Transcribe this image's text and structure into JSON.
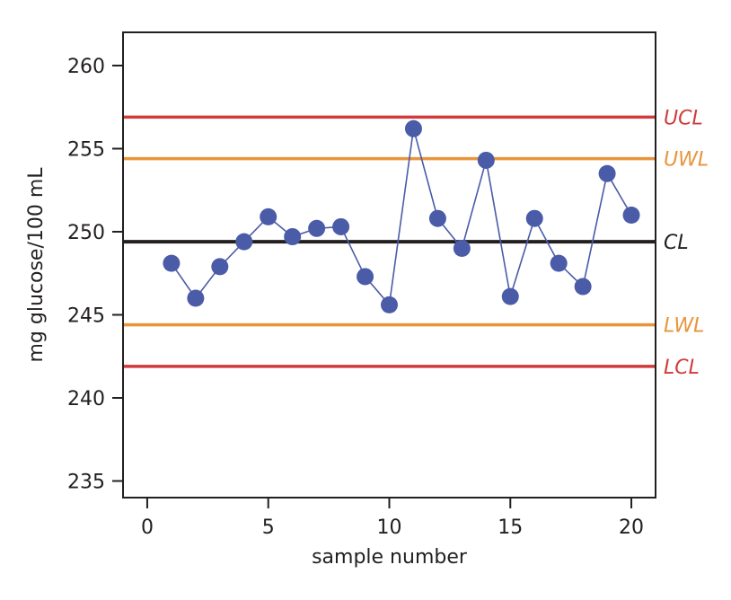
{
  "chart_data": {
    "type": "line",
    "title": "",
    "xlabel": "sample number",
    "ylabel": "mg glucose/100 mL",
    "xlim": [
      -1,
      21
    ],
    "ylim": [
      234,
      262
    ],
    "xticks": [
      0,
      5,
      10,
      15,
      20
    ],
    "yticks": [
      235,
      240,
      245,
      250,
      255,
      260
    ],
    "grid": false,
    "colors": {
      "points": "#4a5ba8",
      "line": "#4a5ba8",
      "control": "#d13b3b",
      "warning": "#e8953a",
      "center": "#231f20"
    },
    "series": [
      {
        "x": [
          1,
          2,
          3,
          4,
          5,
          6,
          7,
          8,
          9,
          10,
          11,
          12,
          13,
          14,
          15,
          16,
          17,
          18,
          19,
          20
        ],
        "values": [
          248.1,
          246.0,
          247.9,
          249.4,
          250.9,
          249.7,
          250.2,
          250.3,
          247.3,
          245.6,
          256.2,
          250.8,
          249.0,
          254.3,
          246.1,
          250.8,
          248.1,
          246.7,
          253.5,
          251.0
        ]
      }
    ],
    "limits": [
      {
        "label": "UCL",
        "value": 256.9,
        "kind": "control"
      },
      {
        "label": "UWL",
        "value": 254.4,
        "kind": "warning"
      },
      {
        "label": "CL",
        "value": 249.4,
        "kind": "center"
      },
      {
        "label": "LWL",
        "value": 244.4,
        "kind": "warning"
      },
      {
        "label": "LCL",
        "value": 241.9,
        "kind": "control"
      }
    ]
  }
}
